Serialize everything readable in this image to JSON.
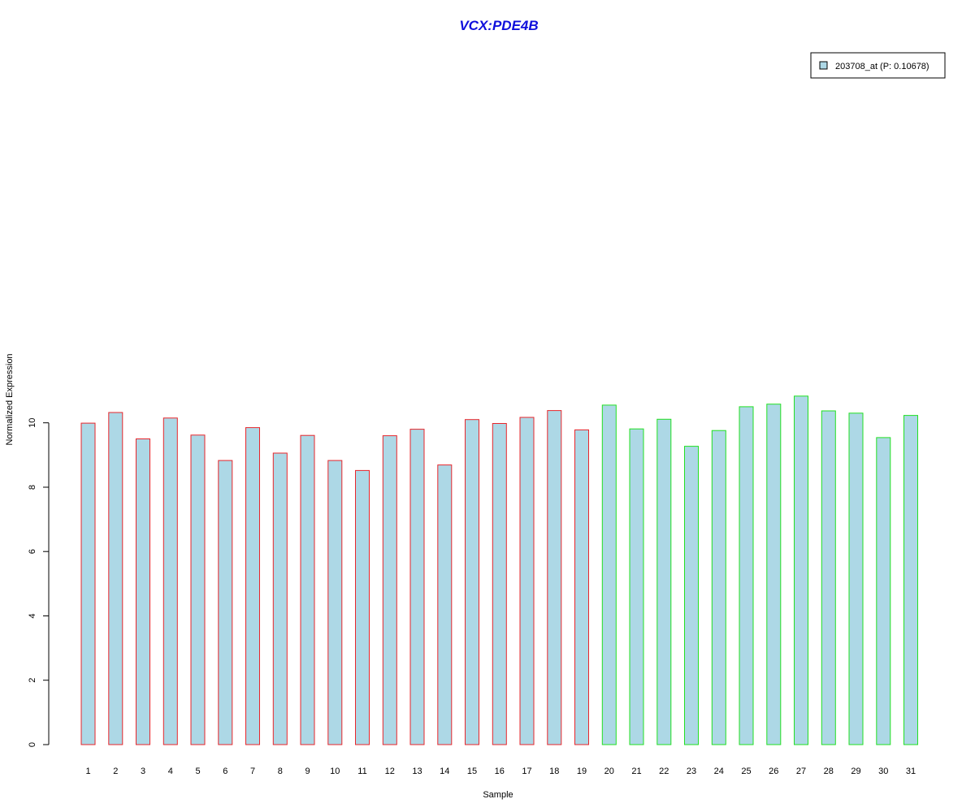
{
  "chart_data": {
    "type": "bar",
    "title": "VCX:PDE4B",
    "xlabel": "Sample",
    "ylabel": "Normalized Expression",
    "categories": [
      "1",
      "2",
      "3",
      "4",
      "5",
      "6",
      "7",
      "8",
      "9",
      "10",
      "11",
      "12",
      "13",
      "14",
      "15",
      "16",
      "17",
      "18",
      "19",
      "20",
      "21",
      "22",
      "23",
      "24",
      "25",
      "26",
      "27",
      "28",
      "29",
      "30",
      "31"
    ],
    "series": [
      {
        "name": "203708_at (P: 0.10678)",
        "values": [
          9.99,
          10.32,
          9.5,
          10.15,
          9.62,
          8.83,
          9.85,
          9.06,
          9.61,
          8.83,
          8.52,
          9.6,
          9.8,
          8.69,
          10.1,
          9.98,
          10.17,
          10.38,
          9.78,
          10.55,
          9.81,
          10.11,
          9.27,
          9.76,
          10.5,
          10.58,
          10.83,
          10.37,
          10.3,
          9.54,
          10.23
        ]
      }
    ],
    "groups": [
      {
        "samples": [
          "1",
          "2",
          "3",
          "4",
          "5",
          "6",
          "7",
          "8",
          "9",
          "10",
          "11",
          "12",
          "13",
          "14",
          "15",
          "16",
          "17",
          "18",
          "19"
        ],
        "border_color": "#e8262b"
      },
      {
        "samples": [
          "20",
          "21",
          "22",
          "23",
          "24",
          "25",
          "26",
          "27",
          "28",
          "29",
          "30",
          "31"
        ],
        "border_color": "#22e022"
      }
    ],
    "bar_fill": "#add8e6",
    "title_color": "#0f0fdc",
    "yticks": [
      0,
      2,
      4,
      6,
      8,
      10
    ],
    "ylim": [
      0,
      10.9
    ],
    "grid": false,
    "legend_position": "top-right"
  }
}
